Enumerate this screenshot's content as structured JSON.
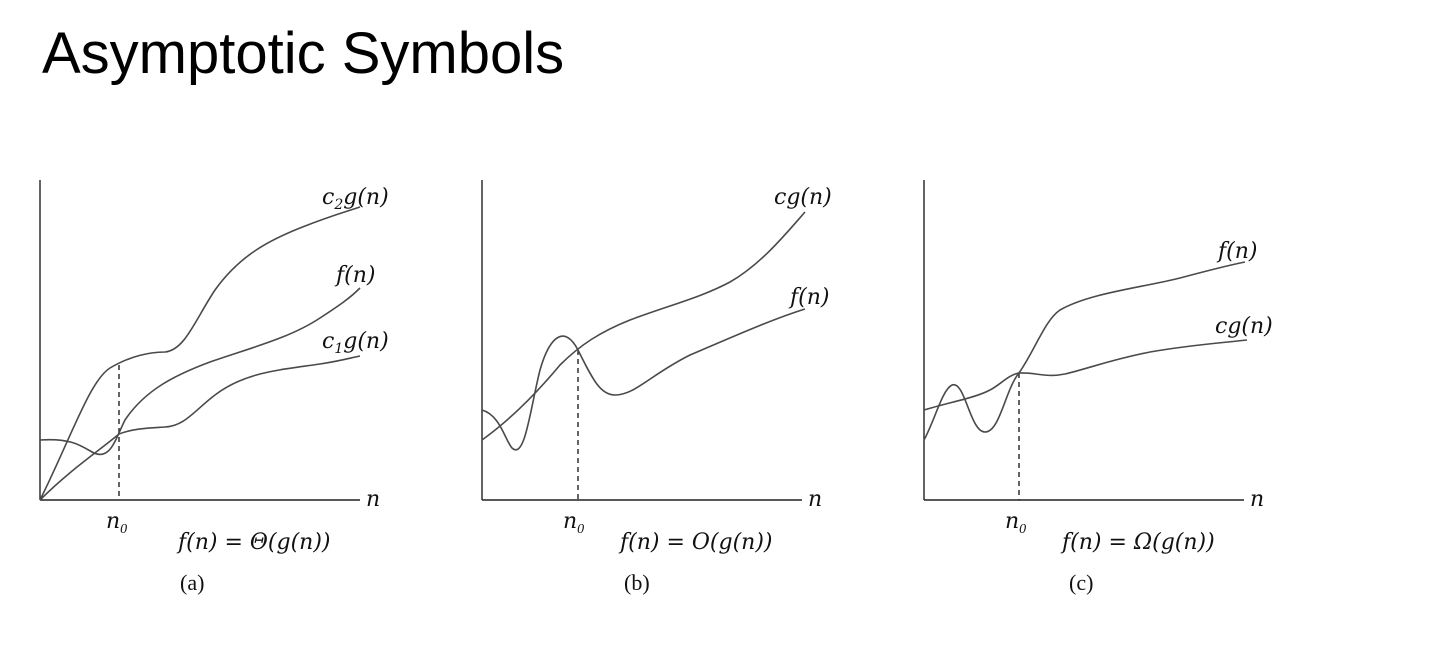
{
  "slide": {
    "title": "Asymptotic Symbols"
  },
  "panels": [
    {
      "id": "a",
      "caption": "(a)",
      "axis_label": "n",
      "threshold_label": {
        "base": "n",
        "sub": "0"
      },
      "formula": "f(n) = Θ(g(n))",
      "curves": [
        {
          "label_main": "c",
          "label_sub": "2",
          "label_rest": "g(n)"
        },
        {
          "label_main": "f(n)",
          "label_sub": "",
          "label_rest": ""
        },
        {
          "label_main": "c",
          "label_sub": "1",
          "label_rest": "g(n)"
        }
      ]
    },
    {
      "id": "b",
      "caption": "(b)",
      "axis_label": "n",
      "threshold_label": {
        "base": "n",
        "sub": "0"
      },
      "formula": "f(n) = O(g(n))",
      "curves": [
        {
          "label_main": "cg(n)",
          "label_sub": "",
          "label_rest": ""
        },
        {
          "label_main": "f(n)",
          "label_sub": "",
          "label_rest": ""
        }
      ]
    },
    {
      "id": "c",
      "caption": "(c)",
      "axis_label": "n",
      "threshold_label": {
        "base": "n",
        "sub": "0"
      },
      "formula": "f(n) = Ω(g(n))",
      "curves": [
        {
          "label_main": "f(n)",
          "label_sub": "",
          "label_rest": ""
        },
        {
          "label_main": "cg(n)",
          "label_sub": "",
          "label_rest": ""
        }
      ]
    }
  ]
}
